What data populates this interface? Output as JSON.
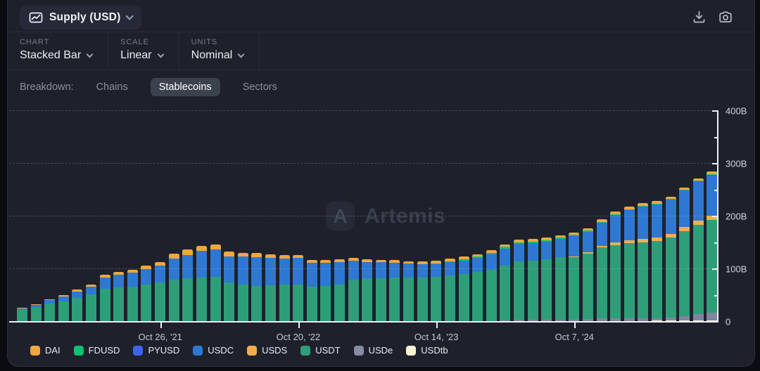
{
  "header": {
    "metric_label": "Supply (USD)"
  },
  "controls": [
    {
      "label": "CHART",
      "value": "Stacked Bar"
    },
    {
      "label": "SCALE",
      "value": "Linear"
    },
    {
      "label": "UNITS",
      "value": "Nominal"
    }
  ],
  "breakdown": {
    "label": "Breakdown:",
    "options": [
      {
        "label": "Chains",
        "active": false
      },
      {
        "label": "Stablecoins",
        "active": true
      },
      {
        "label": "Sectors",
        "active": false
      }
    ]
  },
  "watermark": {
    "logo_glyph": "A",
    "text": "Artemis"
  },
  "legend": [
    {
      "name": "DAI",
      "color": "#f0a73e"
    },
    {
      "name": "FDUSD",
      "color": "#0bc274"
    },
    {
      "name": "PYUSD",
      "color": "#3e63f0"
    },
    {
      "name": "USDC",
      "color": "#2e78d2"
    },
    {
      "name": "USDS",
      "color": "#f2ae4e"
    },
    {
      "name": "USDT",
      "color": "#2e9e79"
    },
    {
      "name": "USDe",
      "color": "#868ba6"
    },
    {
      "name": "USDtb",
      "color": "#f8f2d2"
    }
  ],
  "chart_data": {
    "type": "bar",
    "stacked": true,
    "title": "Supply (USD) — stablecoin supply, stacked by stablecoin",
    "units": "USD billions",
    "bar_count": 51,
    "ylim": [
      0,
      400
    ],
    "y_ticks": [
      {
        "value": 0,
        "label": "0"
      },
      {
        "value": 100,
        "label": "100B"
      },
      {
        "value": 200,
        "label": "200B"
      },
      {
        "value": 300,
        "label": "300B"
      },
      {
        "value": 400,
        "label": "400B"
      }
    ],
    "y_minor_ticks": [
      50,
      150,
      250,
      350
    ],
    "gridlines_at": [
      100,
      200,
      300,
      400
    ],
    "x_tick_labels": [
      {
        "index": 10,
        "label": "Oct 26, '21"
      },
      {
        "index": 20,
        "label": "Oct 20, '22"
      },
      {
        "index": 30,
        "label": "Oct 14, '23"
      },
      {
        "index": 40,
        "label": "Oct 7, '24"
      }
    ],
    "stack_order": [
      "USDtb",
      "USDe",
      "USDT",
      "USDS",
      "USDC",
      "PYUSD",
      "FDUSD",
      "DAI"
    ],
    "colors": {
      "DAI": "#f0a73e",
      "FDUSD": "#0bc274",
      "PYUSD": "#3e63f0",
      "USDC": "#2e78d2",
      "USDS": "#f2ae4e",
      "USDT": "#2e9e79",
      "USDe": "#7f84a0",
      "USDtb": "#f8f2d2"
    },
    "series": {
      "USDT": [
        21,
        27,
        34,
        38,
        44,
        51,
        61,
        64,
        66,
        70,
        73,
        79,
        81,
        83,
        84,
        74,
        69,
        67,
        68,
        69,
        70,
        66,
        67,
        70,
        79,
        81,
        82,
        83,
        83,
        83,
        84,
        87,
        90,
        94,
        98,
        104,
        111,
        112,
        114,
        118,
        119,
        125,
        134,
        138,
        142,
        144,
        146,
        152,
        162,
        170,
        176
      ],
      "USDC": [
        3,
        4,
        6,
        9,
        12,
        14,
        22,
        24,
        26,
        29,
        32,
        40,
        45,
        50,
        52,
        49,
        54,
        55,
        52,
        50,
        50,
        45,
        44,
        42,
        36,
        31,
        30,
        28,
        26,
        25,
        24.5,
        24.5,
        24.5,
        25.5,
        28,
        32,
        33,
        32.5,
        33.5,
        35,
        38,
        39,
        43,
        52,
        56,
        60,
        62,
        64,
        68,
        72,
        74
      ],
      "DAI": [
        1,
        1.2,
        1.8,
        2.5,
        3.5,
        4,
        5,
        5.5,
        5.8,
        6.3,
        6.8,
        9,
        9.5,
        9.8,
        9.6,
        8.8,
        7,
        6.8,
        6.5,
        6.3,
        6,
        5.5,
        5.2,
        5,
        5,
        4.8,
        4.6,
        4.5,
        5,
        5.3,
        5.5,
        5.3,
        5.3,
        5,
        4.8,
        4.6,
        4.5,
        4.5,
        4.4,
        4.2,
        4,
        4.2,
        4.5,
        5,
        5.2,
        4.9,
        4.7,
        4.6,
        4.8,
        5,
        5.4
      ],
      "FDUSD": [
        0,
        0,
        0,
        0,
        0,
        0,
        0,
        0,
        0,
        0,
        0,
        0,
        0,
        0,
        0,
        0,
        0,
        0,
        0,
        0,
        0,
        0,
        0,
        0,
        0,
        0,
        0,
        0,
        0,
        0.4,
        1,
        1.5,
        2,
        2.5,
        3,
        3.5,
        3,
        3,
        2.8,
        2.5,
        2.2,
        2,
        1.8,
        1.6,
        1.5,
        1.4,
        1.3,
        1.3,
        1.3,
        1.3,
        1.3
      ],
      "PYUSD": [
        0,
        0,
        0,
        0,
        0,
        0,
        0,
        0,
        0,
        0,
        0,
        0,
        0,
        0,
        0,
        0,
        0,
        0,
        0,
        0,
        0,
        0,
        0,
        0,
        0,
        0,
        0,
        0,
        0,
        0,
        0,
        0.2,
        0.3,
        0.3,
        0.3,
        0.3,
        0.4,
        0.4,
        0.5,
        0.6,
        0.7,
        0.6,
        0.5,
        0.6,
        0.7,
        0.7,
        0.8,
        0.9,
        1.1,
        1.8,
        2.6
      ],
      "USDe": [
        0,
        0,
        0,
        0,
        0,
        0,
        0,
        0,
        0,
        0,
        0,
        0,
        0,
        0,
        0,
        0,
        0,
        0,
        0,
        0,
        0,
        0,
        0,
        0,
        0,
        0,
        0,
        0,
        0,
        0,
        0,
        0,
        0,
        0,
        0,
        1.5,
        2.3,
        3,
        3.2,
        2.8,
        2.6,
        3.5,
        5.5,
        5.9,
        6,
        5.4,
        4.9,
        5.3,
        7.5,
        11.5,
        14.5
      ],
      "USDS": [
        0,
        0,
        0,
        0,
        0,
        0,
        0,
        0,
        0,
        0,
        0,
        0,
        0,
        0,
        0,
        0,
        0,
        0,
        0,
        0,
        0,
        0,
        0,
        0,
        0,
        0,
        0,
        0,
        0,
        0,
        0,
        0,
        0,
        0,
        0,
        0,
        0,
        0,
        0,
        0,
        1,
        1.8,
        3.5,
        5,
        6,
        6.7,
        7.1,
        7.3,
        7.6,
        7.8,
        8
      ],
      "USDtb": [
        0,
        0,
        0,
        0,
        0,
        0,
        0,
        0,
        0,
        0,
        0,
        0,
        0,
        0,
        0,
        0,
        0,
        0,
        0,
        0,
        0,
        0,
        0,
        0,
        0,
        0,
        0,
        0,
        0,
        0,
        0,
        0,
        0,
        0,
        0,
        0,
        0,
        0,
        0,
        0,
        0,
        0,
        0,
        0,
        0,
        0.5,
        1,
        1.3,
        1.5,
        1.7,
        2
      ]
    }
  }
}
